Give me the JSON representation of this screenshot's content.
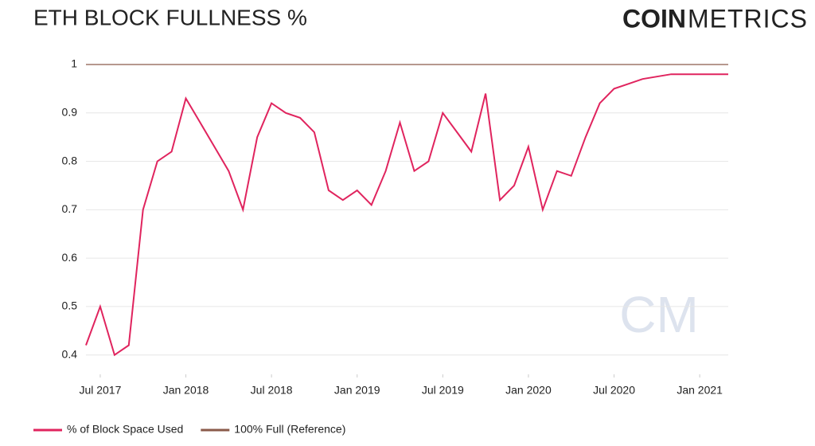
{
  "chart_data": {
    "type": "line",
    "title": "ETH BLOCK FULLNESS %",
    "brand_bold": "COIN",
    "brand_light": "METRICS",
    "watermark": "CM",
    "x": [
      "2017-06",
      "2017-07",
      "2017-08",
      "2017-09",
      "2017-10",
      "2017-11",
      "2017-12",
      "2018-01",
      "2018-02",
      "2018-03",
      "2018-04",
      "2018-05",
      "2018-06",
      "2018-07",
      "2018-08",
      "2018-09",
      "2018-10",
      "2018-11",
      "2018-12",
      "2019-01",
      "2019-02",
      "2019-03",
      "2019-04",
      "2019-05",
      "2019-06",
      "2019-07",
      "2019-08",
      "2019-09",
      "2019-10",
      "2019-11",
      "2019-12",
      "2020-01",
      "2020-02",
      "2020-03",
      "2020-04",
      "2020-05",
      "2020-06",
      "2020-07",
      "2020-08",
      "2020-09",
      "2020-10",
      "2020-11",
      "2020-12",
      "2021-01",
      "2021-02",
      "2021-03"
    ],
    "series": [
      {
        "name": "% of Block Space Used",
        "color": "#e0245e",
        "values": [
          0.42,
          0.5,
          0.4,
          0.42,
          0.7,
          0.8,
          0.82,
          0.93,
          0.88,
          0.83,
          0.78,
          0.7,
          0.85,
          0.92,
          0.9,
          0.89,
          0.86,
          0.74,
          0.72,
          0.74,
          0.71,
          0.78,
          0.88,
          0.78,
          0.8,
          0.9,
          0.86,
          0.82,
          0.94,
          0.72,
          0.75,
          0.83,
          0.7,
          0.78,
          0.77,
          0.85,
          0.92,
          0.95,
          0.96,
          0.97,
          0.975,
          0.98,
          0.98,
          0.98,
          0.98,
          0.98
        ]
      },
      {
        "name": "100% Full (Reference)",
        "color": "#8a5a4a",
        "values": [
          1,
          1,
          1,
          1,
          1,
          1,
          1,
          1,
          1,
          1,
          1,
          1,
          1,
          1,
          1,
          1,
          1,
          1,
          1,
          1,
          1,
          1,
          1,
          1,
          1,
          1,
          1,
          1,
          1,
          1,
          1,
          1,
          1,
          1,
          1,
          1,
          1,
          1,
          1,
          1,
          1,
          1,
          1,
          1,
          1,
          1
        ]
      }
    ],
    "xlim": [
      "2017-06",
      "2021-03"
    ],
    "xticks": [
      {
        "value": "2017-07",
        "label": "Jul 2017"
      },
      {
        "value": "2018-01",
        "label": "Jan 2018"
      },
      {
        "value": "2018-07",
        "label": "Jul 2018"
      },
      {
        "value": "2019-01",
        "label": "Jan 2019"
      },
      {
        "value": "2019-07",
        "label": "Jul 2019"
      },
      {
        "value": "2020-01",
        "label": "Jan 2020"
      },
      {
        "value": "2020-07",
        "label": "Jul 2020"
      },
      {
        "value": "2021-01",
        "label": "Jan 2021"
      }
    ],
    "ylim": [
      0.36,
      1
    ],
    "yticks": [
      0.4,
      0.5,
      0.6,
      0.7,
      0.8,
      0.9,
      1
    ],
    "grid": true
  }
}
